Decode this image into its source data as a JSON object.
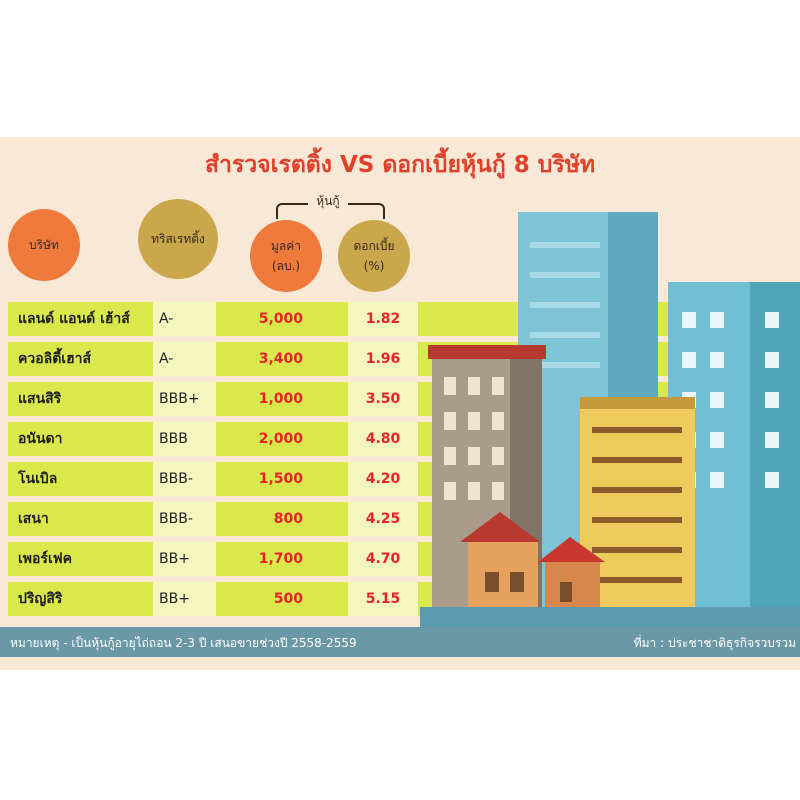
{
  "title": "สำรวจเรตติ้ง VS ดอกเบี้ยหุ้นกู้ 8 บริษัท",
  "headers": {
    "company": "บริษัท",
    "rating": "ทริสเรทติ้ง",
    "group": "หุ้นกู้",
    "value": "มูลค่า\n(ลบ.)",
    "interest": "ดอกเบี้ย\n(%)"
  },
  "rows": [
    {
      "name": "แลนด์ แอนด์ เฮ้าส์",
      "rating": "A-",
      "value": "5,000",
      "interest": "1.82"
    },
    {
      "name": "ควอลิตี้เฮาส์",
      "rating": "A-",
      "value": "3,400",
      "interest": "1.96"
    },
    {
      "name": "แสนสิริ",
      "rating": "BBB+",
      "value": "1,000",
      "interest": "3.50"
    },
    {
      "name": "อนันดา",
      "rating": "BBB",
      "value": "2,000",
      "interest": "4.80"
    },
    {
      "name": "โนเบิล",
      "rating": "BBB-",
      "value": "1,500",
      "interest": "4.20"
    },
    {
      "name": "เสนา",
      "rating": "BBB-",
      "value": "800",
      "interest": "4.25"
    },
    {
      "name": "เพอร์เฟค",
      "rating": "BB+",
      "value": "1,700",
      "interest": "4.70"
    },
    {
      "name": "ปริญสิริ",
      "rating": "BB+",
      "value": "500",
      "interest": "5.15"
    }
  ],
  "footer": {
    "note": "หมายเหตุ - เป็นหุ้นกู้อายุไถ่ถอน 2-3 ปี เสนอขายช่วงปี 2558-2559",
    "source": "ที่มา : ประชาชาติธุรกิจรวบรวม"
  },
  "colors": {
    "background": "#fae8d6",
    "title": "#e0402a",
    "row": "#d9e84a",
    "cell_light": "#f3f7bd",
    "value_text": "#e8212a",
    "footer": "#6a98a6",
    "circle_orange": "#f07a3c",
    "circle_olive": "#c9a74a"
  },
  "illustration": "city-buildings-icon"
}
